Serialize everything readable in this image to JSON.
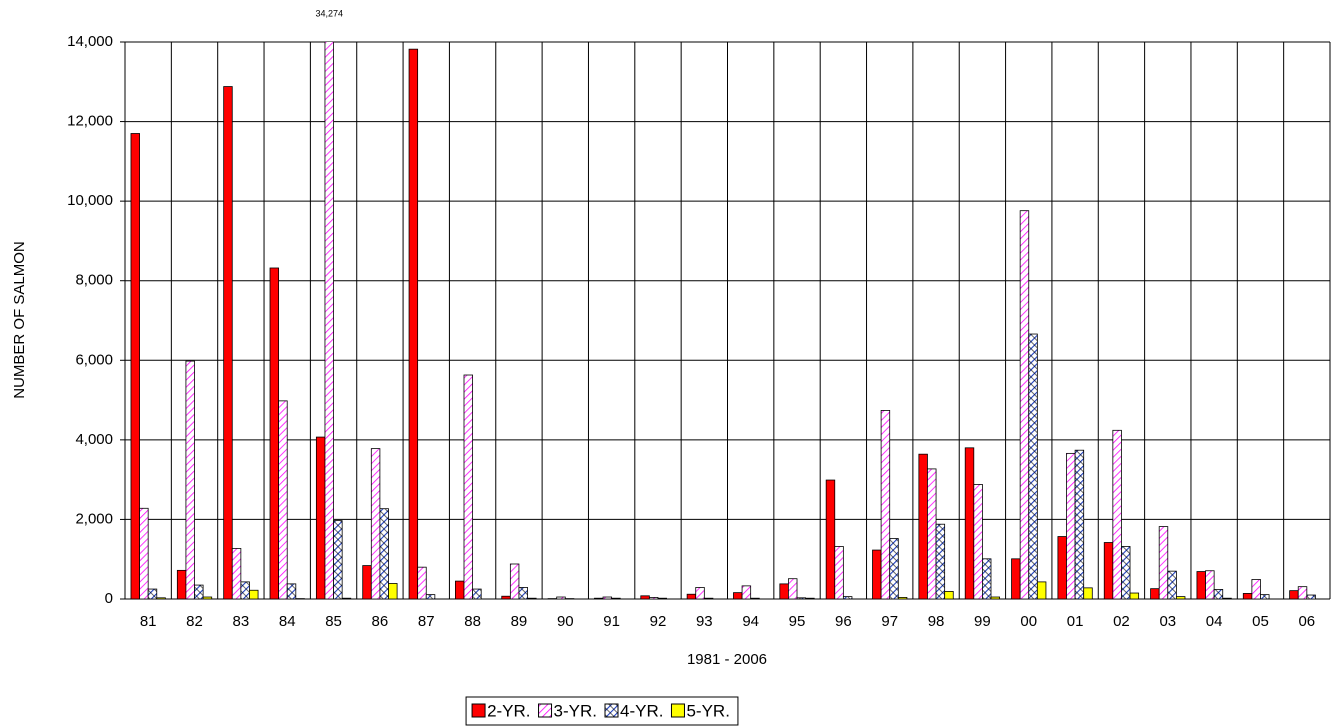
{
  "chart_data": {
    "type": "bar",
    "x_label": "1981 - 2006",
    "y_label": "NUMBER OF SALMON",
    "categories": [
      "81",
      "82",
      "83",
      "84",
      "85",
      "86",
      "87",
      "88",
      "89",
      "90",
      "91",
      "92",
      "93",
      "94",
      "95",
      "96",
      "97",
      "98",
      "99",
      "00",
      "01",
      "02",
      "03",
      "04",
      "05",
      "06"
    ],
    "series": [
      {
        "name": "2-YR.",
        "color": "#ff0000",
        "pattern": "solid",
        "values": [
          11700,
          720,
          12880,
          8320,
          4070,
          840,
          13820,
          450,
          70,
          10,
          20,
          80,
          120,
          160,
          380,
          2990,
          1230,
          3640,
          3800,
          1010,
          1570,
          1420,
          260,
          690,
          140,
          210
        ]
      },
      {
        "name": "3-YR.",
        "color": "#ff00ff",
        "pattern": "hatch",
        "values": [
          2280,
          5980,
          1270,
          4980,
          34274,
          3780,
          800,
          5630,
          880,
          50,
          50,
          40,
          290,
          330,
          510,
          1320,
          4740,
          3270,
          2880,
          9760,
          3660,
          4240,
          1820,
          710,
          490,
          310
        ],
        "value_labels": [
          null,
          null,
          null,
          null,
          "34,274",
          null,
          null,
          null,
          null,
          null,
          null,
          null,
          null,
          null,
          null,
          null,
          null,
          null,
          null,
          null,
          null,
          null,
          null,
          null,
          null,
          null
        ]
      },
      {
        "name": "4-YR.",
        "color": "#1f3fbf",
        "pattern": "crosshatch",
        "values": [
          250,
          350,
          430,
          380,
          1970,
          2270,
          110,
          250,
          290,
          10,
          20,
          20,
          20,
          20,
          30,
          60,
          1520,
          1880,
          1010,
          6660,
          3740,
          1320,
          700,
          240,
          110,
          100
        ]
      },
      {
        "name": "5-YR.",
        "color": "#ffff00",
        "pattern": "solid",
        "values": [
          30,
          50,
          220,
          10,
          20,
          390,
          0,
          0,
          20,
          0,
          0,
          0,
          0,
          0,
          20,
          0,
          40,
          190,
          50,
          430,
          280,
          150,
          60,
          20,
          0,
          0
        ]
      }
    ],
    "ylim": [
      0,
      14000
    ],
    "yticks": [
      0,
      {
        "value": 2000,
        "label": "2,000"
      },
      {
        "value": 4000,
        "label": "4,000"
      },
      {
        "value": 6000,
        "label": "6,000"
      },
      {
        "value": 8000,
        "label": "8,000"
      },
      {
        "value": 10000,
        "label": "10,000"
      },
      {
        "value": 12000,
        "label": "12,000"
      },
      {
        "value": 14000,
        "label": "14,000"
      }
    ],
    "grid": true,
    "legend": "bottom"
  }
}
